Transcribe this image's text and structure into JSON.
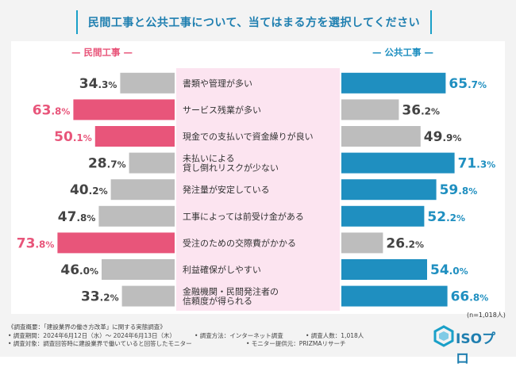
{
  "title": "民間工事と公共工事について、当てはまる方を選択してください",
  "left_series_label": "民間工事",
  "right_series_label": "公共工事",
  "sample_note": "(n=1,018人)",
  "colors": {
    "left_highlight": "#e8557a",
    "right_highlight": "#1f8fc0",
    "neutral": "#bdbdbd",
    "center_band": "#fce4f0",
    "title_accent": "#1f7fb0"
  },
  "chart_data": {
    "type": "bar",
    "title": "民間工事と公共工事について、当てはまる方を選択してください",
    "categories": [
      "書類や管理が多い",
      "サービス残業が多い",
      "現金での支払いで資金繰りが良い",
      "未払いによる\n貸し倒れリスクが少ない",
      "発注量が安定している",
      "工事によっては前受け金がある",
      "受注のための交際費がかかる",
      "利益確保がしやすい",
      "金融機関・民間発注者の\n信頼度が得られる"
    ],
    "series": [
      {
        "name": "民間工事",
        "values": [
          34.3,
          63.8,
          50.1,
          28.7,
          40.2,
          47.8,
          73.8,
          46.0,
          33.2
        ],
        "highlight": [
          false,
          true,
          true,
          false,
          false,
          false,
          true,
          false,
          false
        ]
      },
      {
        "name": "公共工事",
        "values": [
          65.7,
          36.2,
          49.9,
          71.3,
          59.8,
          52.2,
          26.2,
          54.0,
          66.8
        ],
        "highlight": [
          true,
          false,
          false,
          true,
          true,
          true,
          false,
          true,
          true
        ]
      }
    ],
    "ylim": [
      0,
      100
    ],
    "unit": "%"
  },
  "footer": {
    "line1": "《調査概要：「建設業界の働き方改革」に関する実態調査》",
    "line2a": "• 調査期間：2024年6月12日（水）～ 2024年6月13日（木）",
    "line2b": "• 調査方法：インターネット調査",
    "line2c": "• 調査人数：1,018人",
    "line3a": "• 調査対象：調査回答時に建設業界で働いていると回答したモニター",
    "line3b": "• モニター提供元：PRIZMAリサーチ"
  },
  "logo": {
    "text": "ISOプロ"
  }
}
